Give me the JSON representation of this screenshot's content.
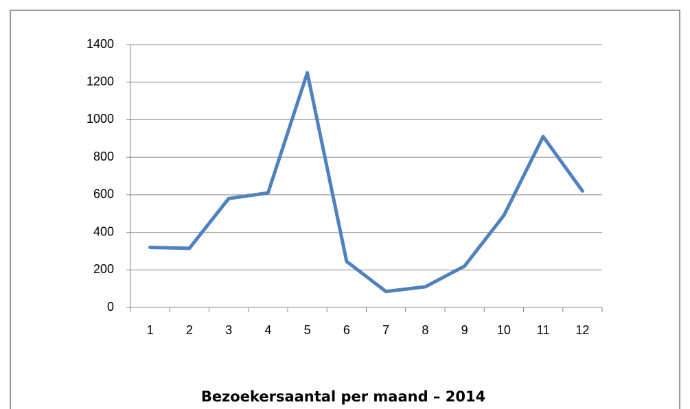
{
  "chart_data": {
    "type": "line",
    "title": "Bezoekersaantal per maand – 2014",
    "categories": [
      "1",
      "2",
      "3",
      "4",
      "5",
      "6",
      "7",
      "8",
      "9",
      "10",
      "11",
      "12"
    ],
    "values": [
      320,
      315,
      580,
      610,
      1250,
      245,
      85,
      110,
      220,
      490,
      910,
      620
    ],
    "color": "#4f81bd",
    "ylim": [
      0,
      1400
    ],
    "yticks": [
      0,
      200,
      400,
      600,
      800,
      1000,
      1200,
      1400
    ],
    "grid": true
  }
}
